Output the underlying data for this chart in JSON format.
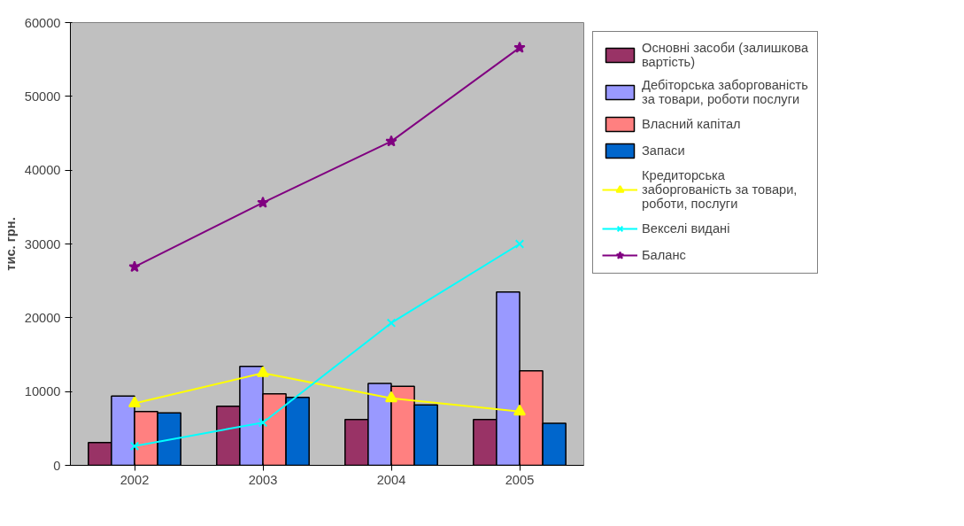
{
  "chart_data": {
    "type": "bar",
    "ylabel": "тис. грн.",
    "categories": [
      "2002",
      "2003",
      "2004",
      "2005"
    ],
    "ylim": [
      0,
      60000
    ],
    "yticks": [
      0,
      10000,
      20000,
      30000,
      40000,
      50000,
      60000
    ],
    "grid": false,
    "legend": "right",
    "series": [
      {
        "name": "Основні засоби (залишкова вартість)",
        "color": "#993366",
        "values": [
          3100,
          8000,
          6200,
          6200
        ]
      },
      {
        "name": "Дебіторська заборгованість за товари, роботи послуги",
        "color": "#9999ff",
        "values": [
          9400,
          13400,
          11100,
          23500
        ]
      },
      {
        "name": "Власний капітал",
        "color": "#ff8080",
        "values": [
          7300,
          9700,
          10700,
          12800
        ]
      },
      {
        "name": "Запаси",
        "color": "#0066cc",
        "values": [
          7100,
          9200,
          8200,
          5700
        ]
      },
      {
        "name": "Кредиторська заборгованість за товари, роботи, послуги",
        "type": "line",
        "marker": "triangle",
        "color": "#ffff00",
        "values": [
          8400,
          12500,
          9100,
          7300
        ]
      },
      {
        "name": "Векселі видані",
        "type": "line",
        "marker": "cross",
        "color": "#00ffff",
        "values": [
          2600,
          5800,
          19300,
          30000
        ]
      },
      {
        "name": "Баланс",
        "type": "line",
        "marker": "star",
        "color": "#800080",
        "values": [
          26900,
          35600,
          43900,
          56600
        ]
      }
    ]
  }
}
